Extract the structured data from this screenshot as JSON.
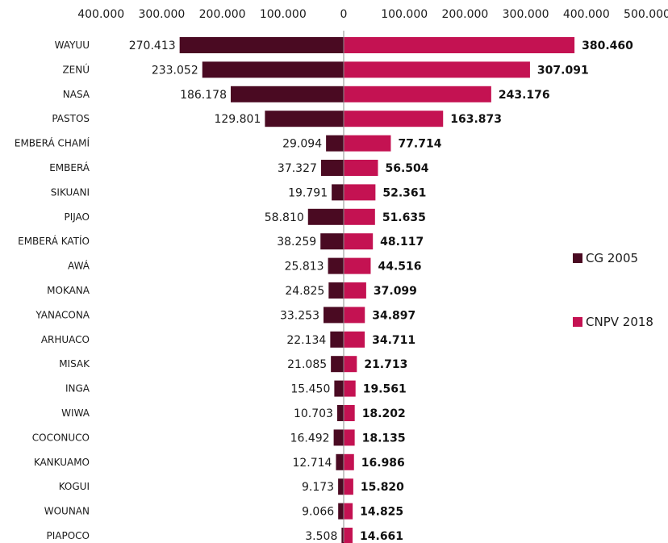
{
  "chart_data": {
    "type": "bar",
    "orientation": "horizontal-pyramid",
    "categories": [
      "WAYUU",
      "ZENÚ",
      "NASA",
      "PASTOS",
      "EMBERÁ CHAMÍ",
      "EMBERÁ",
      "SIKUANI",
      "PIJAO",
      "EMBERÁ KATÍO",
      "AWÁ",
      "MOKANA",
      "YANACONA",
      "ARHUACO",
      "MISAK",
      "INGA",
      "WIWA",
      "COCONUCO",
      "KANKUAMO",
      "KOGUI",
      "WOUNAN",
      "PIAPOCO"
    ],
    "series": [
      {
        "name": "CG 2005",
        "color": "#4a0a22",
        "side": "left",
        "values": [
          270413,
          233052,
          186178,
          129801,
          29094,
          37327,
          19791,
          58810,
          38259,
          25813,
          24825,
          33253,
          22134,
          21085,
          15450,
          10703,
          16492,
          12714,
          9173,
          9066,
          3508
        ],
        "labels": [
          "270.413",
          "233.052",
          "186.178",
          "129.801",
          "29.094",
          "37.327",
          "19.791",
          "58.810",
          "38.259",
          "25.813",
          "24.825",
          "33.253",
          "22.134",
          "21.085",
          "15.450",
          "10.703",
          "16.492",
          "12.714",
          "9.173",
          "9.066",
          "3.508"
        ]
      },
      {
        "name": "CNPV 2018",
        "color": "#c41252",
        "side": "right",
        "values": [
          380460,
          307091,
          243176,
          163873,
          77714,
          56504,
          52361,
          51635,
          48117,
          44516,
          37099,
          34897,
          34711,
          21713,
          19561,
          18202,
          18135,
          16986,
          15820,
          14825,
          14661
        ],
        "labels": [
          "380.460",
          "307.091",
          "243.176",
          "163.873",
          "77.714",
          "56.504",
          "52.361",
          "51.635",
          "48.117",
          "44.516",
          "37.099",
          "34.897",
          "34.711",
          "21.713",
          "19.561",
          "18.202",
          "18.135",
          "16.986",
          "15.820",
          "14.825",
          "14.661"
        ]
      }
    ],
    "x_ticks": [
      "400.000",
      "300.000",
      "200.000",
      "100.000",
      "0",
      "100.000",
      "200.000",
      "300.000",
      "400.000",
      "500.000"
    ],
    "x_tick_values": [
      -400000,
      -300000,
      -200000,
      -100000,
      0,
      100000,
      200000,
      300000,
      400000,
      500000
    ],
    "xlim": [
      -400000,
      500000
    ],
    "grid": false,
    "legend_position": "right"
  },
  "legend": {
    "cg2005": "CG 2005",
    "cnpv2018": "CNPV 2018"
  }
}
